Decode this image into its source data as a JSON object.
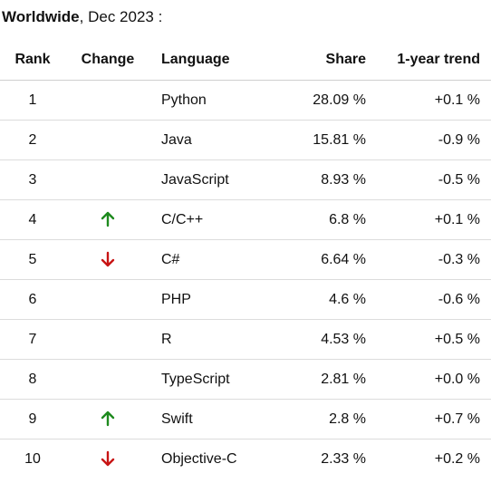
{
  "caption": {
    "region": "Worldwide",
    "date": ", Dec 2023 :"
  },
  "colors": {
    "arrow_up": "#1e8a1e",
    "arrow_down": "#c81414"
  },
  "table": {
    "headers": {
      "rank": "Rank",
      "change": "Change",
      "language": "Language",
      "share": "Share",
      "trend": "1-year trend"
    },
    "rows": [
      {
        "rank": "1",
        "change": "none",
        "language": "Python",
        "share": "28.09 %",
        "trend": "+0.1 %"
      },
      {
        "rank": "2",
        "change": "none",
        "language": "Java",
        "share": "15.81 %",
        "trend": "-0.9 %"
      },
      {
        "rank": "3",
        "change": "none",
        "language": "JavaScript",
        "share": "8.93 %",
        "trend": "-0.5 %"
      },
      {
        "rank": "4",
        "change": "up",
        "language": "C/C++",
        "share": "6.8 %",
        "trend": "+0.1 %"
      },
      {
        "rank": "5",
        "change": "down",
        "language": "C#",
        "share": "6.64 %",
        "trend": "-0.3 %"
      },
      {
        "rank": "6",
        "change": "none",
        "language": "PHP",
        "share": "4.6 %",
        "trend": "-0.6 %"
      },
      {
        "rank": "7",
        "change": "none",
        "language": "R",
        "share": "4.53 %",
        "trend": "+0.5 %"
      },
      {
        "rank": "8",
        "change": "none",
        "language": "TypeScript",
        "share": "2.81 %",
        "trend": "+0.0 %"
      },
      {
        "rank": "9",
        "change": "up",
        "language": "Swift",
        "share": "2.8 %",
        "trend": "+0.7 %"
      },
      {
        "rank": "10",
        "change": "down",
        "language": "Objective-C",
        "share": "2.33 %",
        "trend": "+0.2 %"
      }
    ]
  }
}
